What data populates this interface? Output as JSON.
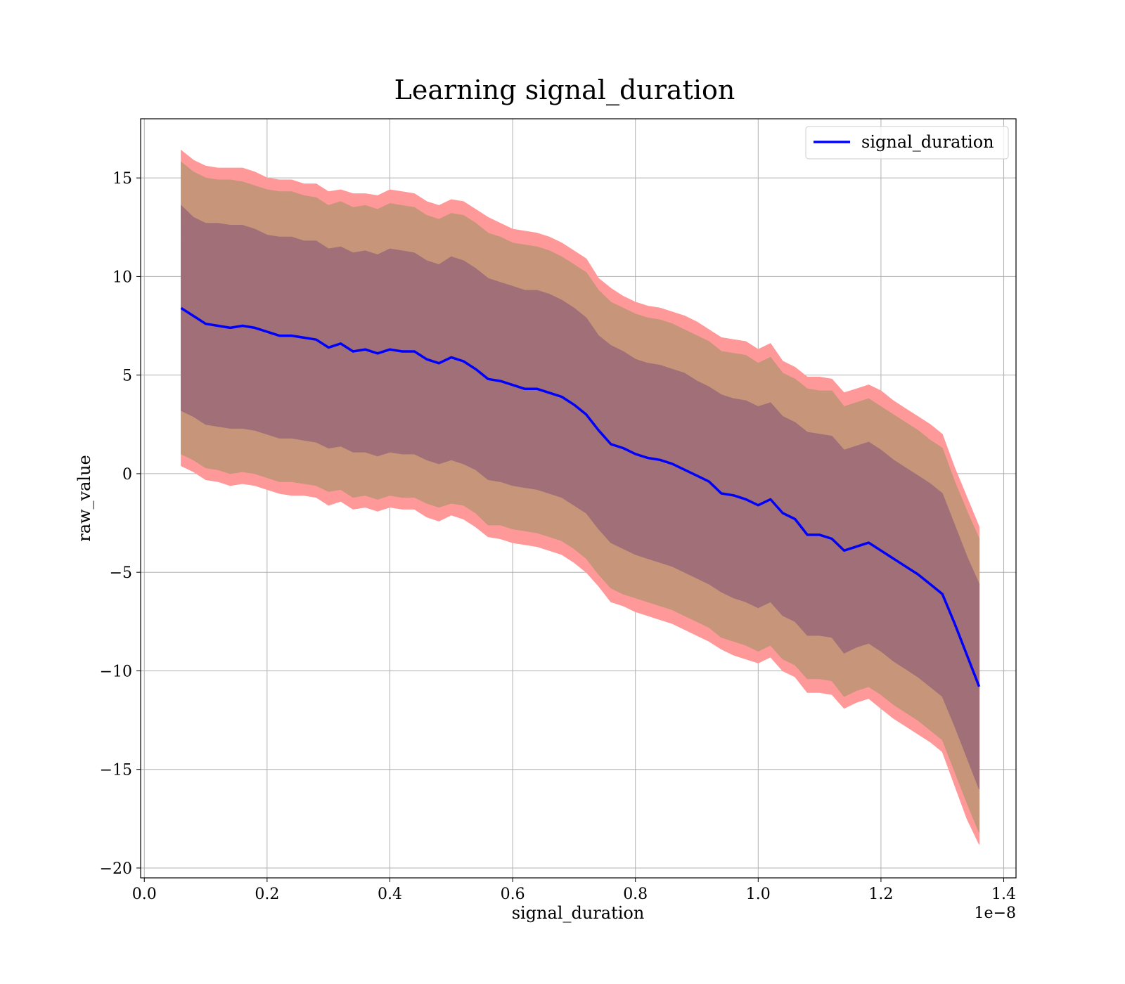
{
  "chart_data": {
    "type": "area",
    "title": "Learning signal_duration",
    "xlabel": "signal_duration",
    "ylabel": "raw_value",
    "x_offset_label": "1e−8",
    "xlim": [
      -0.006,
      1.42
    ],
    "ylim": [
      -20.5,
      18.0
    ],
    "x_ticks": [
      0.0,
      0.2,
      0.4,
      0.6,
      0.8,
      1.0,
      1.2,
      1.4
    ],
    "x_tick_labels": [
      "0.0",
      "0.2",
      "0.4",
      "0.6",
      "0.8",
      "1.0",
      "1.2",
      "1.4"
    ],
    "y_ticks": [
      15,
      10,
      5,
      0,
      -5,
      -10,
      -15,
      -20
    ],
    "y_tick_labels": [
      "15",
      "10",
      "5",
      "0",
      "−5",
      "−10",
      "−15",
      "−20"
    ],
    "grid": true,
    "legend": {
      "position": "top-right",
      "entries": [
        "signal_duration"
      ]
    },
    "colors": {
      "mean_line": "#0000ff",
      "outer_band": "#ff9999",
      "middle_band": "#c6957a",
      "inner_band": "#a06f78"
    },
    "series": [
      {
        "name": "signal_duration",
        "x": [
          0.06,
          0.08,
          0.1,
          0.12,
          0.14,
          0.16,
          0.18,
          0.2,
          0.22,
          0.24,
          0.26,
          0.28,
          0.3,
          0.32,
          0.34,
          0.36,
          0.38,
          0.4,
          0.42,
          0.44,
          0.46,
          0.48,
          0.5,
          0.52,
          0.54,
          0.56,
          0.58,
          0.6,
          0.62,
          0.64,
          0.66,
          0.68,
          0.7,
          0.72,
          0.74,
          0.76,
          0.78,
          0.8,
          0.82,
          0.84,
          0.86,
          0.88,
          0.9,
          0.92,
          0.94,
          0.96,
          0.98,
          1.0,
          1.02,
          1.04,
          1.06,
          1.08,
          1.1,
          1.12,
          1.14,
          1.16,
          1.18,
          1.2,
          1.22,
          1.24,
          1.26,
          1.28,
          1.3,
          1.32,
          1.34,
          1.36
        ],
        "y": [
          8.4,
          8.0,
          7.6,
          7.5,
          7.4,
          7.5,
          7.4,
          7.2,
          7.0,
          7.0,
          6.9,
          6.8,
          6.4,
          6.6,
          6.2,
          6.3,
          6.1,
          6.3,
          6.2,
          6.2,
          5.8,
          5.6,
          5.9,
          5.7,
          5.3,
          4.8,
          4.7,
          4.5,
          4.3,
          4.3,
          4.1,
          3.9,
          3.5,
          3.0,
          2.2,
          1.5,
          1.3,
          1.0,
          0.8,
          0.7,
          0.5,
          0.2,
          -0.1,
          -0.4,
          -1.0,
          -1.1,
          -1.3,
          -1.6,
          -1.3,
          -2.0,
          -2.3,
          -3.1,
          -3.1,
          -3.3,
          -3.9,
          -3.7,
          -3.5,
          -3.9,
          -4.3,
          -4.7,
          -5.1,
          -5.6,
          -6.1,
          -7.6,
          -9.2,
          -10.8
        ]
      }
    ],
    "bands": [
      {
        "upper": [
          16.4,
          15.9,
          15.6,
          15.5,
          15.5,
          15.5,
          15.3,
          15.0,
          14.9,
          14.9,
          14.7,
          14.7,
          14.3,
          14.4,
          14.2,
          14.2,
          14.1,
          14.4,
          14.3,
          14.2,
          13.8,
          13.6,
          13.9,
          13.8,
          13.4,
          13.0,
          12.7,
          12.4,
          12.3,
          12.2,
          12.0,
          11.7,
          11.3,
          10.9,
          9.9,
          9.4,
          9.0,
          8.7,
          8.5,
          8.4,
          8.2,
          8.0,
          7.7,
          7.3,
          6.9,
          6.8,
          6.7,
          6.3,
          6.6,
          5.7,
          5.4,
          4.9,
          4.9,
          4.8,
          4.1,
          4.3,
          4.5,
          4.2,
          3.7,
          3.3,
          2.9,
          2.5,
          2.0,
          0.3,
          -1.2,
          -2.7
        ],
        "lower": [
          0.4,
          0.1,
          -0.3,
          -0.4,
          -0.6,
          -0.5,
          -0.6,
          -0.8,
          -1.0,
          -1.1,
          -1.1,
          -1.2,
          -1.6,
          -1.4,
          -1.8,
          -1.7,
          -1.9,
          -1.7,
          -1.8,
          -1.8,
          -2.2,
          -2.4,
          -2.1,
          -2.3,
          -2.7,
          -3.2,
          -3.3,
          -3.5,
          -3.6,
          -3.7,
          -3.9,
          -4.1,
          -4.5,
          -5.0,
          -5.7,
          -6.5,
          -6.7,
          -7.0,
          -7.2,
          -7.4,
          -7.6,
          -7.9,
          -8.2,
          -8.5,
          -8.9,
          -9.2,
          -9.4,
          -9.6,
          -9.3,
          -10.0,
          -10.3,
          -11.1,
          -11.1,
          -11.2,
          -11.9,
          -11.6,
          -11.4,
          -11.9,
          -12.4,
          -12.8,
          -13.2,
          -13.6,
          -14.1,
          -15.8,
          -17.5,
          -18.8
        ]
      },
      {
        "upper": [
          15.8,
          15.3,
          15.0,
          14.9,
          14.9,
          14.8,
          14.6,
          14.4,
          14.3,
          14.3,
          14.1,
          14.0,
          13.6,
          13.8,
          13.5,
          13.6,
          13.4,
          13.7,
          13.6,
          13.5,
          13.1,
          12.9,
          13.2,
          13.1,
          12.7,
          12.2,
          12.0,
          11.7,
          11.6,
          11.5,
          11.3,
          11.0,
          10.6,
          10.2,
          9.3,
          8.7,
          8.4,
          8.1,
          7.9,
          7.8,
          7.6,
          7.3,
          7.0,
          6.7,
          6.2,
          6.1,
          6.0,
          5.6,
          5.9,
          5.1,
          4.8,
          4.3,
          4.2,
          4.2,
          3.4,
          3.6,
          3.8,
          3.4,
          3.0,
          2.6,
          2.2,
          1.7,
          1.3,
          -0.4,
          -1.9,
          -3.3
        ],
        "lower": [
          1.0,
          0.7,
          0.3,
          0.2,
          0.0,
          0.1,
          0.0,
          -0.2,
          -0.4,
          -0.4,
          -0.5,
          -0.6,
          -0.9,
          -0.8,
          -1.2,
          -1.1,
          -1.3,
          -1.1,
          -1.2,
          -1.2,
          -1.5,
          -1.7,
          -1.5,
          -1.6,
          -2.0,
          -2.6,
          -2.6,
          -2.8,
          -2.9,
          -3.0,
          -3.2,
          -3.4,
          -3.8,
          -4.3,
          -5.1,
          -5.8,
          -6.1,
          -6.3,
          -6.5,
          -6.7,
          -6.9,
          -7.2,
          -7.5,
          -7.8,
          -8.3,
          -8.5,
          -8.7,
          -9.0,
          -8.7,
          -9.4,
          -9.7,
          -10.4,
          -10.4,
          -10.5,
          -11.3,
          -11.0,
          -10.8,
          -11.2,
          -11.7,
          -12.1,
          -12.5,
          -13.0,
          -13.5,
          -15.1,
          -16.7,
          -18.2
        ]
      },
      {
        "upper": [
          13.6,
          13.0,
          12.7,
          12.7,
          12.6,
          12.6,
          12.4,
          12.1,
          12.0,
          12.0,
          11.8,
          11.8,
          11.4,
          11.5,
          11.2,
          11.3,
          11.1,
          11.4,
          11.3,
          11.2,
          10.8,
          10.6,
          11.0,
          10.8,
          10.4,
          9.9,
          9.7,
          9.5,
          9.3,
          9.3,
          9.1,
          8.8,
          8.4,
          7.9,
          7.0,
          6.5,
          6.2,
          5.8,
          5.6,
          5.5,
          5.3,
          5.1,
          4.7,
          4.4,
          4.0,
          3.8,
          3.7,
          3.4,
          3.6,
          2.9,
          2.6,
          2.1,
          2.0,
          1.9,
          1.2,
          1.4,
          1.6,
          1.2,
          0.7,
          0.3,
          -0.1,
          -0.5,
          -1.0,
          -2.6,
          -4.2,
          -5.6
        ],
        "lower": [
          3.2,
          2.9,
          2.5,
          2.4,
          2.3,
          2.3,
          2.2,
          2.0,
          1.8,
          1.8,
          1.7,
          1.6,
          1.3,
          1.4,
          1.1,
          1.1,
          0.9,
          1.1,
          1.0,
          1.0,
          0.7,
          0.5,
          0.7,
          0.5,
          0.2,
          -0.3,
          -0.4,
          -0.6,
          -0.7,
          -0.8,
          -1.0,
          -1.2,
          -1.6,
          -2.0,
          -2.8,
          -3.5,
          -3.8,
          -4.1,
          -4.3,
          -4.5,
          -4.7,
          -5.0,
          -5.3,
          -5.6,
          -6.0,
          -6.3,
          -6.5,
          -6.8,
          -6.5,
          -7.2,
          -7.5,
          -8.2,
          -8.2,
          -8.3,
          -9.1,
          -8.8,
          -8.6,
          -9.0,
          -9.5,
          -9.9,
          -10.3,
          -10.8,
          -11.3,
          -12.8,
          -14.4,
          -16.0
        ]
      }
    ]
  }
}
